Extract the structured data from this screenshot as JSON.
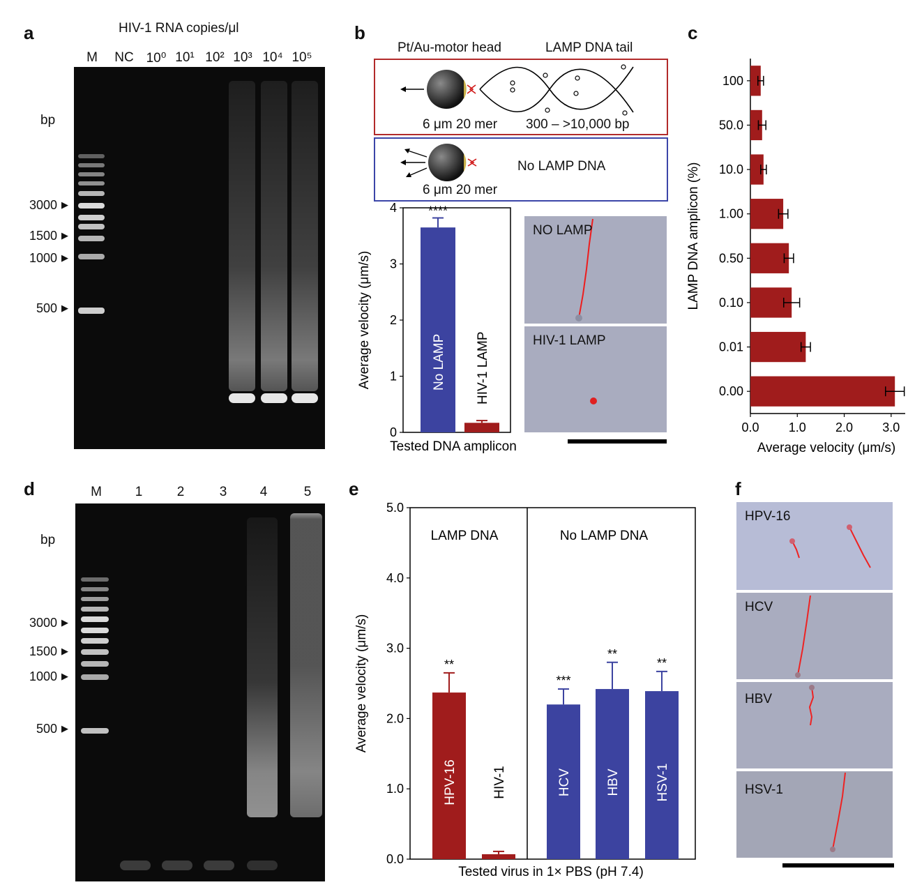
{
  "panels": {
    "a": {
      "letter": "a",
      "header": "HIV-1 RNA copies/μl",
      "lanes": [
        "M",
        "NC",
        "10⁰",
        "10¹",
        "10²",
        "10³",
        "10⁴",
        "10⁵"
      ],
      "bp_unit": "bp",
      "markers": [
        "3000",
        "1500",
        "1000",
        "500"
      ]
    },
    "b": {
      "letter": "b",
      "head_label": "Pt/Au-motor head",
      "tail_label": "LAMP DNA tail",
      "size1": "6 μm 20 mer",
      "length_label": "300 – >10,000 bp",
      "no_lamp_label": "No LAMP DNA",
      "size2": "6 μm 20 mer",
      "micro_top": "NO LAMP",
      "micro_bottom": "HIV-1 LAMP"
    },
    "c": {
      "letter": "c"
    },
    "d": {
      "letter": "d",
      "lanes": [
        "M",
        "1",
        "2",
        "3",
        "4",
        "5"
      ],
      "bp_unit": "bp",
      "markers": [
        "3000",
        "1500",
        "1000",
        "500"
      ]
    },
    "e": {
      "letter": "e"
    },
    "f": {
      "letter": "f",
      "labels": [
        "HPV-16",
        "HCV",
        "HBV",
        "HSV-1"
      ]
    }
  },
  "chart_data": [
    {
      "id": "b",
      "type": "bar",
      "categories": [
        "No LAMP",
        "HIV-1 LAMP"
      ],
      "values": [
        3.65,
        0.17
      ],
      "errors": [
        0.17,
        0.04
      ],
      "significance": [
        "****",
        ""
      ],
      "colors": [
        "#3c43a0",
        "#a01c1c"
      ],
      "ylabel": "Average velocity (μm/s)",
      "xlabel": "Tested DNA amplicon",
      "ylim": [
        0,
        4
      ],
      "yticks": [
        "0",
        "1",
        "2",
        "3",
        "4"
      ]
    },
    {
      "id": "c",
      "type": "bar",
      "orientation": "horizontal",
      "categories": [
        "100",
        "50.0",
        "10.0",
        "1.00",
        "0.50",
        "0.10",
        "0.01",
        "0.00"
      ],
      "values": [
        0.22,
        0.25,
        0.28,
        0.7,
        0.82,
        0.88,
        1.18,
        3.08
      ],
      "errors": [
        0.06,
        0.08,
        0.06,
        0.1,
        0.1,
        0.17,
        0.1,
        0.2
      ],
      "color": "#a01c1c",
      "ylabel": "LAMP DNA amplicon (%)",
      "xlabel": "Average velocity (μm/s)",
      "xlim": [
        0,
        3.3
      ],
      "xticks": [
        "0.0",
        "1.0",
        "2.0",
        "3.0"
      ]
    },
    {
      "id": "e",
      "type": "bar",
      "categories": [
        "HPV-16",
        "HIV-1",
        "HCV",
        "HBV",
        "HSV-1"
      ],
      "values": [
        2.37,
        0.07,
        2.2,
        2.42,
        2.39
      ],
      "errors": [
        0.28,
        0.04,
        0.22,
        0.38,
        0.28
      ],
      "significance": [
        "**",
        "",
        "***",
        "**",
        "**"
      ],
      "colors": [
        "#a01c1c",
        "#a01c1c",
        "#3c43a0",
        "#3c43a0",
        "#3c43a0"
      ],
      "groups": [
        "LAMP DNA",
        "No LAMP DNA"
      ],
      "ylabel": "Average velocity (μm/s)",
      "xlabel": "Tested virus in 1× PBS (pH 7.4)",
      "ylim": [
        0,
        5
      ],
      "yticks": [
        "0.0",
        "1.0",
        "2.0",
        "3.0",
        "4.0",
        "5.0"
      ]
    }
  ]
}
